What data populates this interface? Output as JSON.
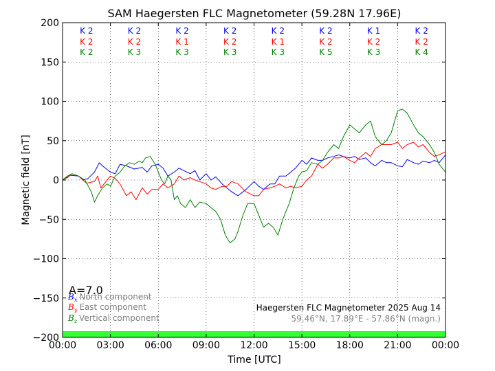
{
  "chart_data": {
    "type": "line",
    "title": "SAM Haegersten FLC Magnetometer (59.28N 17.96E)",
    "xlabel": "Time [UTC]",
    "ylabel": "Magnetic field [nT]",
    "xlim": [
      0,
      24
    ],
    "ylim": [
      -200,
      200
    ],
    "x_ticks": [
      "00:00",
      "03:00",
      "06:00",
      "09:00",
      "12:00",
      "15:00",
      "18:00",
      "21:00",
      "00:00"
    ],
    "y_ticks": [
      200,
      150,
      100,
      50,
      0,
      -50,
      -100,
      -150,
      -200
    ],
    "grid": true,
    "a_index": "A=7.0",
    "k_indices": {
      "north": [
        "K 2",
        "K 2",
        "K 2",
        "K 2",
        "K 2",
        "K 2",
        "K 1",
        "K 2"
      ],
      "east": [
        "K 2",
        "K 2",
        "K 1",
        "K 2",
        "K 1",
        "K 2",
        "K 2",
        "K 2"
      ],
      "vertical": [
        "K 2",
        "K 3",
        "K 3",
        "K 3",
        "K 3",
        "K 5",
        "K 3",
        "K 4"
      ]
    },
    "legend": {
      "placement": "bottom-left",
      "items": [
        {
          "symbol": "B",
          "sub": "x",
          "label": "North component",
          "color": "#0000ff"
        },
        {
          "symbol": "B",
          "sub": "y",
          "label": "East component",
          "color": "#ff0000"
        },
        {
          "symbol": "B",
          "sub": "z",
          "label": "Vertical component",
          "color": "#008000"
        }
      ]
    },
    "info_title": "Haegersten FLC Magnetometer 2025 Aug 14",
    "info_coords": "59.46°N, 17.89°E - 57.86°N (magn.)",
    "status_bar_color": "#33ff33",
    "series": [
      {
        "key": "north",
        "color": "#0000ff",
        "x": [
          0,
          0.5,
          1,
          1.3,
          1.6,
          2,
          2.3,
          2.5,
          3,
          3.3,
          3.6,
          4,
          4.5,
          5,
          5.3,
          5.6,
          6,
          6.3,
          6.6,
          7,
          7.3,
          7.6,
          8,
          8.3,
          8.6,
          9,
          9.3,
          9.6,
          10,
          10.3,
          10.6,
          11,
          11.5,
          12,
          12.3,
          12.6,
          13,
          13.3,
          13.6,
          14,
          14.3,
          14.6,
          15,
          15.3,
          15.6,
          16,
          16.3,
          16.6,
          17,
          17.3,
          17.6,
          18,
          18.3,
          18.6,
          19,
          19.3,
          19.6,
          20,
          20.3,
          20.6,
          21,
          21.3,
          21.6,
          22,
          22.3,
          22.6,
          23,
          23.3,
          23.6,
          24
        ],
        "values": [
          0,
          6,
          5,
          0,
          2,
          10,
          22,
          18,
          10,
          8,
          20,
          18,
          14,
          16,
          10,
          18,
          20,
          15,
          5,
          10,
          15,
          12,
          8,
          12,
          0,
          8,
          0,
          4,
          -5,
          -10,
          -15,
          -20,
          -12,
          -2,
          -8,
          -12,
          -5,
          -5,
          5,
          5,
          10,
          15,
          25,
          20,
          28,
          25,
          25,
          28,
          30,
          32,
          30,
          28,
          30,
          26,
          28,
          22,
          18,
          25,
          22,
          22,
          18,
          17,
          26,
          22,
          20,
          24,
          22,
          25,
          22,
          32
        ]
      },
      {
        "key": "east",
        "color": "#ff0000",
        "x": [
          0,
          0.3,
          0.6,
          1,
          1.5,
          2,
          2.2,
          2.4,
          2.8,
          3,
          3.3,
          3.6,
          4,
          4.3,
          4.6,
          5,
          5.3,
          5.6,
          6,
          6.3,
          6.6,
          7,
          7.3,
          7.6,
          8,
          8.3,
          8.6,
          9,
          9.3,
          9.6,
          10,
          10.3,
          10.6,
          11,
          11.5,
          12,
          12.3,
          12.6,
          13,
          13.3,
          13.6,
          14,
          14.3,
          14.6,
          15,
          15.3,
          15.6,
          16,
          16.3,
          16.6,
          17,
          17.3,
          17.6,
          18,
          18.3,
          18.6,
          19,
          19.3,
          19.6,
          20,
          20.3,
          20.6,
          21,
          21.3,
          21.6,
          22,
          22.3,
          22.6,
          23,
          23.3,
          23.6,
          24
        ],
        "values": [
          0,
          3,
          8,
          5,
          -4,
          -2,
          5,
          -10,
          0,
          5,
          2,
          -5,
          -20,
          -15,
          -25,
          -10,
          -18,
          -12,
          -12,
          -5,
          -10,
          -5,
          5,
          0,
          3,
          0,
          -2,
          -5,
          -10,
          -12,
          -8,
          -8,
          -2,
          -5,
          -15,
          -20,
          -20,
          -12,
          -10,
          -8,
          -5,
          -10,
          -8,
          -10,
          -8,
          0,
          5,
          20,
          15,
          20,
          28,
          28,
          30,
          25,
          22,
          28,
          35,
          30,
          40,
          45,
          45,
          45,
          48,
          40,
          45,
          48,
          42,
          45,
          35,
          30,
          32,
          36
        ]
      },
      {
        "key": "vertical",
        "color": "#008000",
        "x": [
          0,
          0.3,
          0.6,
          1,
          1.4,
          1.8,
          2,
          2.2,
          2.5,
          2.8,
          3,
          3.3,
          3.6,
          3.9,
          4.2,
          4.5,
          4.8,
          5,
          5.2,
          5.5,
          5.8,
          6,
          6.2,
          6.4,
          6.6,
          6.8,
          7,
          7.2,
          7.4,
          7.7,
          8,
          8.3,
          8.6,
          9,
          9.3,
          9.6,
          9.9,
          10.2,
          10.5,
          10.8,
          11,
          11.3,
          11.6,
          12,
          12.3,
          12.6,
          12.9,
          13.2,
          13.5,
          13.8,
          14,
          14.2,
          14.5,
          14.8,
          15,
          15.3,
          15.6,
          16,
          16.3,
          16.6,
          17,
          17.3,
          17.6,
          18,
          18.3,
          18.6,
          19,
          19.3,
          19.6,
          20,
          20.3,
          20.6,
          21,
          21.3,
          21.6,
          22,
          22.3,
          22.6,
          23,
          23.3,
          23.6,
          24
        ],
        "values": [
          0,
          5,
          8,
          5,
          0,
          -15,
          -28,
          -20,
          -10,
          -5,
          -8,
          5,
          10,
          18,
          22,
          20,
          24,
          22,
          28,
          30,
          20,
          10,
          0,
          -5,
          5,
          0,
          -25,
          -20,
          -30,
          -35,
          -25,
          -35,
          -28,
          -30,
          -35,
          -40,
          -50,
          -70,
          -80,
          -75,
          -65,
          -45,
          -30,
          -30,
          -45,
          -60,
          -55,
          -60,
          -70,
          -50,
          -40,
          -30,
          -10,
          5,
          10,
          12,
          22,
          20,
          25,
          35,
          45,
          40,
          55,
          70,
          65,
          60,
          70,
          75,
          55,
          45,
          50,
          60,
          88,
          90,
          85,
          70,
          60,
          55,
          45,
          35,
          20,
          10
        ]
      }
    ]
  }
}
